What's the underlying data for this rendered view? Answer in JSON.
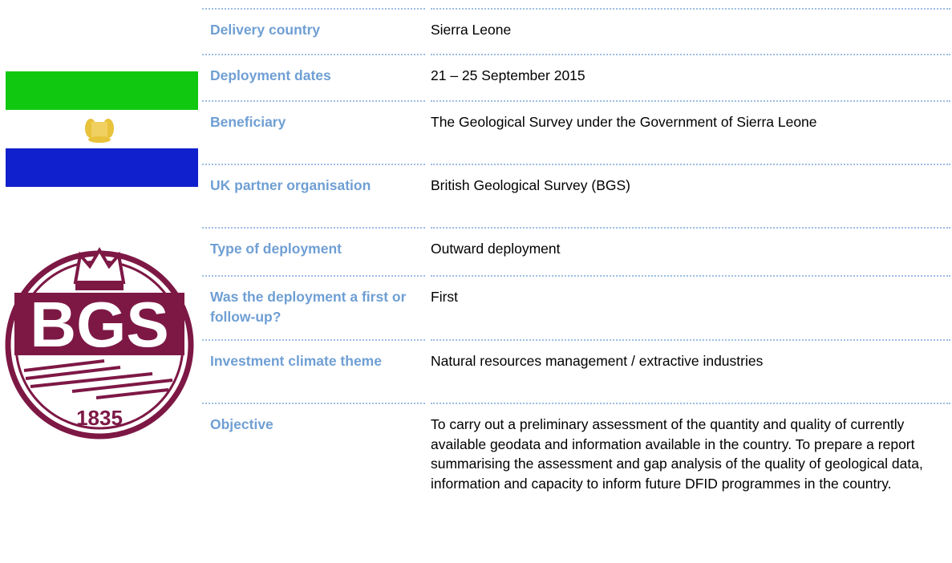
{
  "logo": {
    "initials": "BGS",
    "year": "1835"
  },
  "rows": [
    {
      "label": "Delivery country",
      "value": "Sierra Leone"
    },
    {
      "label": "Deployment dates",
      "value": "21 – 25 September 2015"
    },
    {
      "label": "Beneficiary",
      "value": "The Geological Survey under the Government of Sierra Leone"
    },
    {
      "label": "UK partner organisation",
      "value": "British Geological Survey (BGS)"
    },
    {
      "label": "Type of deployment",
      "value": "Outward deployment"
    },
    {
      "label": "Was the deployment a first or follow-up?",
      "value": "First"
    },
    {
      "label": "Investment climate theme",
      "value": "Natural resources management / extractive industries"
    },
    {
      "label": "Objective",
      "value": "To carry out a preliminary assessment of the quantity and quality of currently available geodata and information available in the country. To prepare a report summarising the assessment and gap analysis of the quality of geological data, information and capacity to inform future DFID programmes in the country."
    }
  ]
}
